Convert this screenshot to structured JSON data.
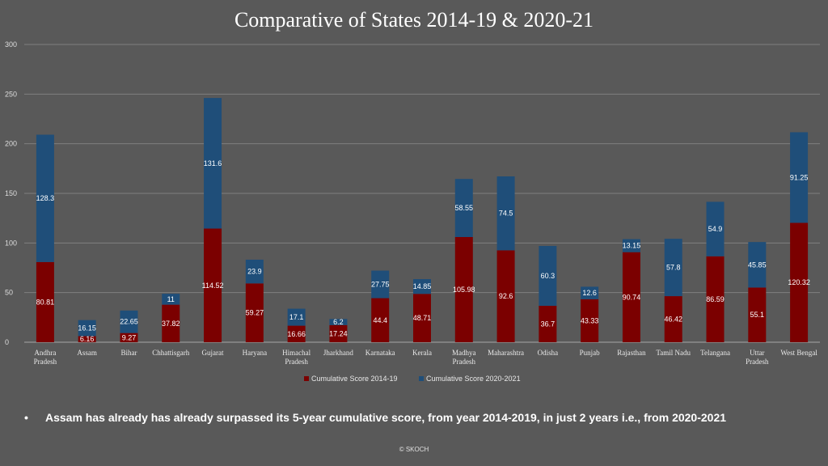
{
  "title": "Comparative of States 2014-19 & 2020-21",
  "footnote": {
    "bullet": "•",
    "text": "Assam has already has already surpassed its 5-year cumulative score, from year 2014-2019,  in just 2 years i.e., from 2020-2021"
  },
  "copyright": "© SKOCH",
  "colors": {
    "series1": "#7b0000",
    "series2": "#1f4e79",
    "grid": "#7f7f7f",
    "axis": "#a6a6a6"
  },
  "chart_data": {
    "type": "bar",
    "stacked": true,
    "title": "Comparative of States 2014-19 & 2020-21",
    "xlabel": "",
    "ylabel": "",
    "ylim": [
      0,
      300
    ],
    "yticks": [
      0,
      50,
      100,
      150,
      200,
      250,
      300
    ],
    "grid": true,
    "legend_position": "bottom",
    "categories": [
      [
        "Andhra",
        "Pradesh"
      ],
      [
        "Assam"
      ],
      [
        "Bihar"
      ],
      [
        "Chhattisgarh"
      ],
      [
        "Gujarat"
      ],
      [
        "Haryana"
      ],
      [
        "Himachal",
        "Pradesh"
      ],
      [
        "Jharkhand"
      ],
      [
        "Karnataka"
      ],
      [
        "Kerala"
      ],
      [
        "Madhya",
        "Pradesh"
      ],
      [
        "Maharashtra"
      ],
      [
        "Odisha"
      ],
      [
        "Punjab"
      ],
      [
        "Rajasthan"
      ],
      [
        "Tamil Nadu"
      ],
      [
        "Telangana"
      ],
      [
        "Uttar",
        "Pradesh"
      ],
      [
        "West Bengal"
      ]
    ],
    "series": [
      {
        "name": "Cumulative Score 2014-19",
        "values": [
          80.81,
          6.16,
          9.27,
          37.82,
          114.52,
          59.27,
          16.66,
          17.24,
          44.4,
          48.71,
          105.98,
          92.6,
          36.7,
          43.33,
          90.74,
          46.42,
          86.59,
          55.1,
          120.32
        ]
      },
      {
        "name": "Cumulative Score 2020-2021",
        "values": [
          128.3,
          16.15,
          22.65,
          11,
          131.6,
          23.9,
          17.1,
          6.2,
          27.75,
          14.85,
          58.55,
          74.5,
          60.3,
          12.6,
          13.15,
          57.8,
          54.9,
          45.85,
          91.25
        ]
      }
    ]
  }
}
